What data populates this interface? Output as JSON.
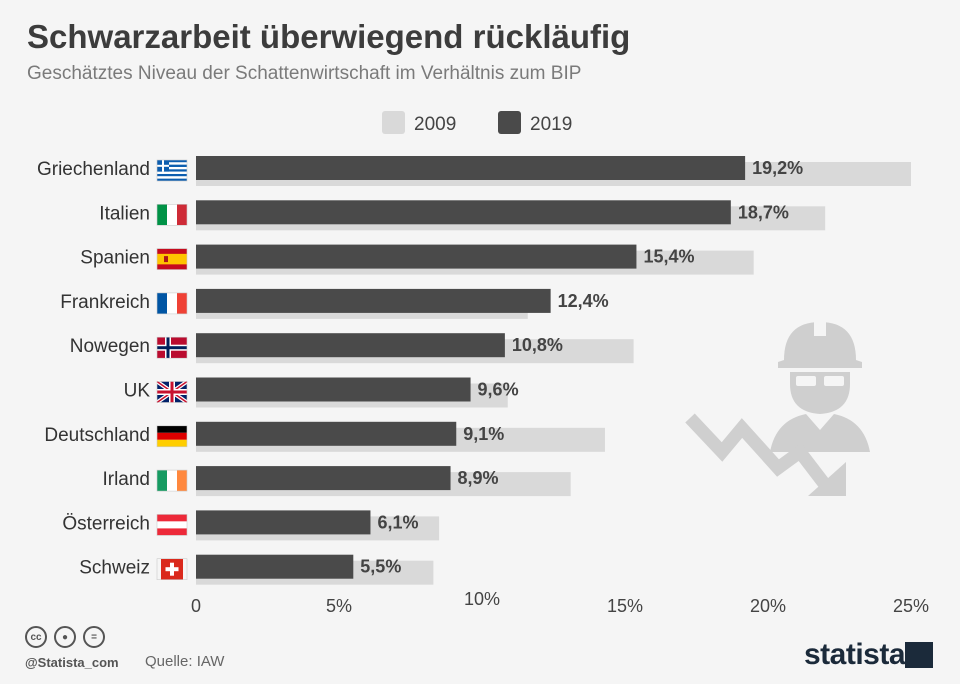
{
  "header": {
    "title": "Schwarzarbeit überwiegend rückläufig",
    "subtitle": "Geschätztes Niveau der Schattenwirtschaft im Verhältnis zum BIP"
  },
  "footer": {
    "handle": "@Statista_com",
    "source": "Quelle: IAW",
    "brand": "statista",
    "license_icons": [
      "cc-icon",
      "by-icon",
      "nd-icon"
    ]
  },
  "colors": {
    "series_2009": "#d9d9d9",
    "series_2019": "#4a4a4a",
    "background": "#f5f5f5"
  },
  "chart_data": {
    "type": "bar",
    "orientation": "horizontal",
    "categories": [
      "Griechenland",
      "Italien",
      "Spanien",
      "Frankreich",
      "Nowegen",
      "UK",
      "Deutschland",
      "Irland",
      "Österreich",
      "Schweiz"
    ],
    "flags": [
      "flag-greece-icon",
      "flag-italy-icon",
      "flag-spain-icon",
      "flag-france-icon",
      "flag-norway-icon",
      "flag-uk-icon",
      "flag-germany-icon",
      "flag-ireland-icon",
      "flag-austria-icon",
      "flag-switzerland-icon"
    ],
    "series": [
      {
        "name": "2009",
        "values": [
          25.0,
          22.0,
          19.5,
          11.6,
          15.3,
          10.9,
          14.3,
          13.1,
          8.5,
          8.3
        ]
      },
      {
        "name": "2019",
        "values": [
          19.2,
          18.7,
          15.4,
          12.4,
          10.8,
          9.6,
          9.1,
          8.9,
          6.1,
          5.5
        ]
      }
    ],
    "data_labels": [
      "19,2%",
      "18,7%",
      "15,4%",
      "12,4%",
      "10,8%",
      "9,6%",
      "9,1%",
      "8,9%",
      "6,1%",
      "5,5%"
    ],
    "xlim": [
      0,
      25
    ],
    "xticks": [
      0,
      5,
      10,
      15,
      20,
      25
    ],
    "xtick_labels": [
      "0",
      "5%",
      "10%",
      "15%",
      "20%",
      "25%"
    ],
    "legend": "top-center",
    "grid": false
  }
}
